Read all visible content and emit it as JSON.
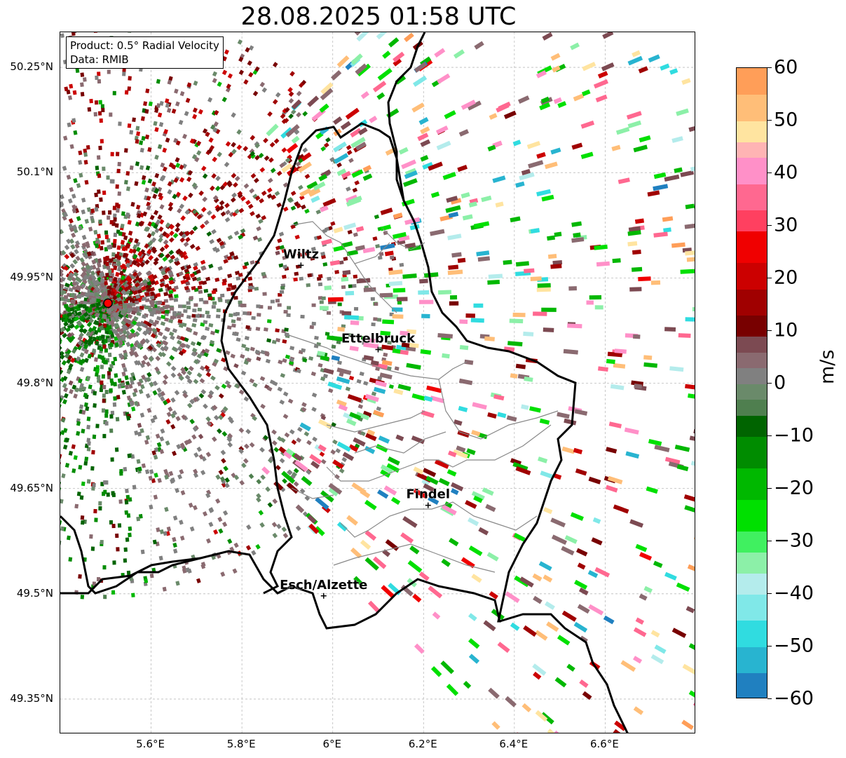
{
  "title": "28.08.2025 01:58 UTC",
  "info": {
    "product": "Product: 0.5° Radial Velocity",
    "data": "Data: RMIB"
  },
  "axes": {
    "lat_labels": [
      "50.25°N",
      "50.1°N",
      "49.95°N",
      "49.8°N",
      "49.65°N",
      "49.5°N",
      "49.35°N"
    ],
    "lon_labels": [
      "5.6°E",
      "5.8°E",
      "6°E",
      "6.2°E",
      "6.4°E",
      "6.6°E"
    ],
    "lat_values": [
      50.25,
      50.1,
      49.95,
      49.8,
      49.65,
      49.5,
      49.35
    ],
    "lon_values": [
      5.6,
      5.8,
      6.0,
      6.2,
      6.4,
      6.6
    ],
    "lon_range": [
      5.4,
      6.8
    ],
    "lat_range": [
      49.3,
      50.3
    ],
    "grid": true
  },
  "cities": [
    {
      "name": "Wiltz",
      "lon": 5.93,
      "lat": 49.968
    },
    {
      "name": "Ettelbruck",
      "lon": 6.1,
      "lat": 49.848
    },
    {
      "name": "Findel",
      "lon": 6.21,
      "lat": 49.626
    },
    {
      "name": "Esch/Alzette",
      "lon": 5.98,
      "lat": 49.497
    }
  ],
  "radar_site": {
    "lon": 5.505,
    "lat": 49.914,
    "color": "#ff0000"
  },
  "colorbar": {
    "label": "m/s",
    "min": -60,
    "max": 60,
    "ticks": [
      60,
      50,
      40,
      30,
      20,
      10,
      0,
      -10,
      -20,
      -30,
      -40,
      -50,
      -60
    ],
    "tick_labels": [
      "60",
      "50",
      "40",
      "30",
      "20",
      "10",
      "0",
      "−10",
      "−20",
      "−30",
      "−40",
      "−50",
      "−60"
    ],
    "segments": [
      {
        "from": -60,
        "to": -55,
        "color": "#2080c0"
      },
      {
        "from": -55,
        "to": -50,
        "color": "#28b4d0"
      },
      {
        "from": -50,
        "to": -45,
        "color": "#30dce0"
      },
      {
        "from": -45,
        "to": -40,
        "color": "#80e8e8"
      },
      {
        "from": -40,
        "to": -36,
        "color": "#b4ecec"
      },
      {
        "from": -36,
        "to": -32,
        "color": "#8cf0a8"
      },
      {
        "from": -32,
        "to": -28,
        "color": "#40f060"
      },
      {
        "from": -28,
        "to": -22,
        "color": "#00e000"
      },
      {
        "from": -22,
        "to": -16,
        "color": "#00b800"
      },
      {
        "from": -16,
        "to": -10,
        "color": "#008c00"
      },
      {
        "from": -10,
        "to": -6,
        "color": "#006400"
      },
      {
        "from": -6,
        "to": -3,
        "color": "#4f7f4f"
      },
      {
        "from": -3,
        "to": 0,
        "color": "#6a8a6a"
      },
      {
        "from": 0,
        "to": 3,
        "color": "#808080"
      },
      {
        "from": 3,
        "to": 6,
        "color": "#8a6a70"
      },
      {
        "from": 6,
        "to": 9,
        "color": "#7c4a52"
      },
      {
        "from": 9,
        "to": 13,
        "color": "#780000"
      },
      {
        "from": 13,
        "to": 18,
        "color": "#a00000"
      },
      {
        "from": 18,
        "to": 23,
        "color": "#cc0000"
      },
      {
        "from": 23,
        "to": 29,
        "color": "#f00000"
      },
      {
        "from": 29,
        "to": 33,
        "color": "#ff4060"
      },
      {
        "from": 33,
        "to": 38,
        "color": "#ff6890"
      },
      {
        "from": 38,
        "to": 43,
        "color": "#ff90c8"
      },
      {
        "from": 43,
        "to": 46,
        "color": "#ffb4b4"
      },
      {
        "from": 46,
        "to": 50,
        "color": "#ffe4a0"
      },
      {
        "from": 50,
        "to": 55,
        "color": "#ffbe78"
      },
      {
        "from": 55,
        "to": 60,
        "color": "#ff9e58"
      }
    ]
  }
}
